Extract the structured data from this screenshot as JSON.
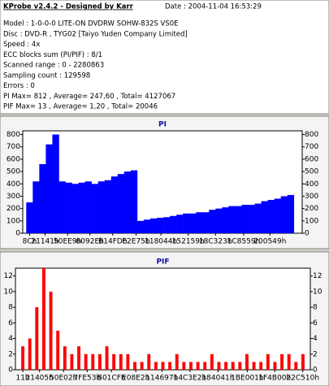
{
  "header": {
    "title": "KProbe v2.4.2 - Designed by Karr",
    "date": "Date : 2004-11-04 16:53:29",
    "lines": [
      "Model : 1-0-0-0 LITE-ON DVDRW SOHW-832S  VS0E",
      "Disc : DVD-R , TYG02 [Taiyo Yuden Company Limited]",
      "Speed : 4x",
      "ECC blocks sum (PI/PIF) : 8/1",
      "Scanned range : 0 - 2280863",
      "Sampling count : 129598",
      "Errors : 0",
      "PI Max= 812 , Average= 247,60 , Total= 4127067",
      "PIF Max= 13 , Average= 1,20 , Total= 20046"
    ]
  },
  "chart_data": [
    {
      "type": "bar",
      "title": "PI",
      "color": "#0000ff",
      "x": [
        0,
        57000,
        114000,
        171000,
        228000,
        285000,
        342000,
        399000,
        456000,
        513000,
        570000,
        627000,
        684000,
        741000,
        798000,
        855000,
        912000,
        969000,
        1026000,
        1083000,
        1140000,
        1197000,
        1254000,
        1311000,
        1368000,
        1425000,
        1482000,
        1539000,
        1596000,
        1653000,
        1710000,
        1767000,
        1824000,
        1881000,
        1938000,
        1995000,
        2052000,
        2109000,
        2166000,
        2223000,
        2280000
      ],
      "values": [
        250,
        420,
        560,
        720,
        800,
        420,
        410,
        400,
        410,
        420,
        400,
        420,
        430,
        460,
        480,
        500,
        510,
        100,
        110,
        120,
        125,
        130,
        140,
        150,
        160,
        160,
        170,
        170,
        190,
        200,
        210,
        220,
        220,
        230,
        230,
        240,
        260,
        270,
        280,
        300,
        310
      ],
      "xlim": [
        -60000,
        2380000
      ],
      "ylim": [
        0,
        830
      ],
      "yticks": [
        0,
        100,
        200,
        300,
        400,
        500,
        600,
        700,
        800
      ],
      "xticks": [
        {
          "value": 140,
          "label": "8Ch"
        },
        {
          "value": 135489,
          "label": "21141h"
        },
        {
          "value": 331497,
          "label": "50EE9h"
        },
        {
          "value": 526638,
          "label": "8092Eh"
        },
        {
          "value": 726269,
          "label": "B14FDh"
        },
        {
          "value": 929397,
          "label": "E2E75h"
        },
        {
          "value": 1146948,
          "label": "118044h"
        },
        {
          "value": 1384793,
          "label": "152159h"
        },
        {
          "value": 1622819,
          "label": "18C323h"
        },
        {
          "value": 1869145,
          "label": "1C8559h"
        },
        {
          "value": 2098505,
          "label": "200549h"
        }
      ]
    },
    {
      "type": "bar",
      "title": "PIF",
      "color": "#ff0000",
      "x": [
        0,
        57000,
        114000,
        171000,
        228000,
        285000,
        342000,
        399000,
        456000,
        513000,
        570000,
        627000,
        684000,
        741000,
        798000,
        855000,
        912000,
        969000,
        1026000,
        1083000,
        1140000,
        1197000,
        1254000,
        1311000,
        1368000,
        1425000,
        1482000,
        1539000,
        1596000,
        1653000,
        1710000,
        1767000,
        1824000,
        1881000,
        1938000,
        1995000,
        2052000,
        2109000,
        2166000,
        2223000,
        2280000
      ],
      "values": [
        3,
        4,
        8,
        13,
        10,
        5,
        3,
        2,
        3,
        2,
        2,
        2,
        3,
        2,
        2,
        2,
        1,
        1,
        2,
        1,
        1,
        1,
        2,
        1,
        1,
        1,
        1,
        2,
        1,
        1,
        1,
        1,
        2,
        1,
        1,
        2,
        1,
        2,
        2,
        1,
        2
      ],
      "xlim": [
        -60000,
        2340000
      ],
      "ylim": [
        0,
        13
      ],
      "yticks": [
        0,
        2,
        4,
        6,
        8,
        10,
        12
      ],
      "xticks": [
        {
          "value": 17,
          "label": "11h"
        },
        {
          "value": 136197,
          "label": "21405h"
        },
        {
          "value": 331266,
          "label": "50E02h"
        },
        {
          "value": 523859,
          "label": "7FE53h"
        },
        {
          "value": 721359,
          "label": "B01CFh"
        },
        {
          "value": 919778,
          "label": "E08E2h"
        },
        {
          "value": 1132183,
          "label": "114697h"
        },
        {
          "value": 1360866,
          "label": "14C3E2h"
        },
        {
          "value": 1589313,
          "label": "184041h"
        },
        {
          "value": 1826817,
          "label": "1BE001h"
        },
        {
          "value": 2050816,
          "label": "1F4B00h"
        },
        {
          "value": 2278672,
          "label": "22C510h"
        }
      ]
    }
  ]
}
